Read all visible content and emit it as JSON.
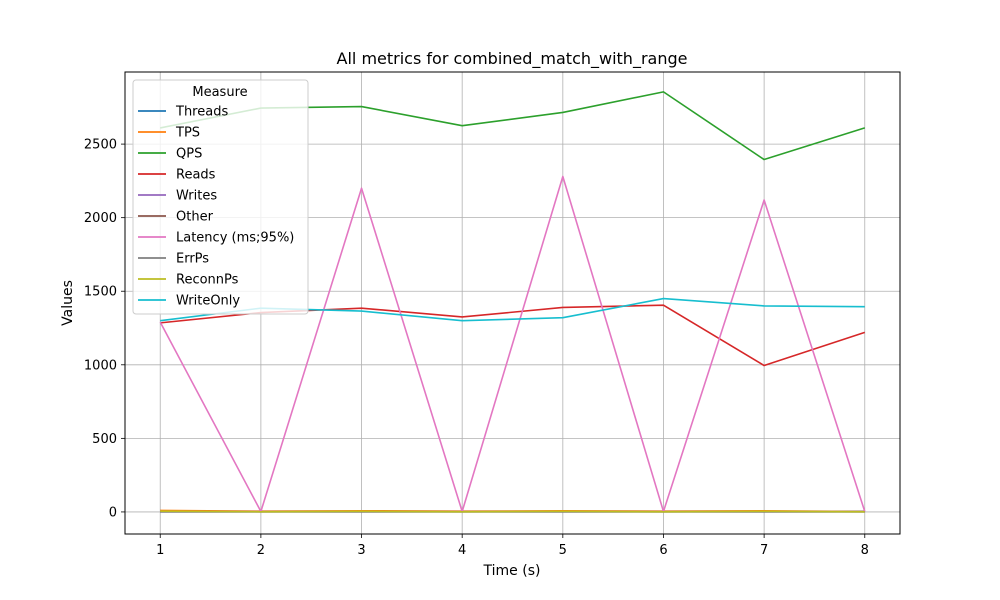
{
  "chart_data": {
    "type": "line",
    "title": "All metrics for combined_match_with_range",
    "xlabel": "Time (s)",
    "ylabel": "Values",
    "x": [
      1,
      2,
      3,
      4,
      5,
      6,
      7,
      8
    ],
    "xlim": [
      0.65,
      8.35
    ],
    "ylim": [
      -150,
      2990
    ],
    "xticks": [
      1,
      2,
      3,
      4,
      5,
      6,
      7,
      8
    ],
    "yticks": [
      0,
      500,
      1000,
      1500,
      2000,
      2500
    ],
    "grid": true,
    "legend": {
      "title": "Measure",
      "placement": "upper-left"
    },
    "series": [
      {
        "name": "Threads",
        "color": "#1f77b4",
        "values": [
          4,
          4,
          4,
          4,
          4,
          4,
          4,
          4
        ]
      },
      {
        "name": "TPS",
        "color": "#ff7f0e",
        "values": [
          10,
          5,
          8,
          5,
          8,
          5,
          8,
          3
        ]
      },
      {
        "name": "QPS",
        "color": "#2ca02c",
        "values": [
          2610,
          2745,
          2755,
          2625,
          2715,
          2855,
          2395,
          2610
        ]
      },
      {
        "name": "Reads",
        "color": "#d62728",
        "values": [
          1285,
          1355,
          1385,
          1325,
          1390,
          1405,
          995,
          1220
        ]
      },
      {
        "name": "Writes",
        "color": "#9467bd",
        "values": [
          2,
          2,
          2,
          2,
          2,
          2,
          2,
          2
        ]
      },
      {
        "name": "Other",
        "color": "#8c564b",
        "values": [
          2,
          2,
          2,
          2,
          2,
          2,
          2,
          2
        ]
      },
      {
        "name": "Latency (ms;95%)",
        "color": "#e377c2",
        "values": [
          1290,
          3,
          2200,
          3,
          2280,
          3,
          2120,
          3
        ]
      },
      {
        "name": "ErrPs",
        "color": "#7f7f7f",
        "values": [
          0,
          0,
          0,
          0,
          0,
          0,
          0,
          0
        ]
      },
      {
        "name": "ReconnPs",
        "color": "#bcbd22",
        "values": [
          5,
          1,
          4,
          1,
          4,
          1,
          4,
          1
        ]
      },
      {
        "name": "WriteOnly",
        "color": "#17becf",
        "values": [
          1300,
          1385,
          1365,
          1300,
          1320,
          1450,
          1400,
          1395
        ]
      }
    ]
  }
}
